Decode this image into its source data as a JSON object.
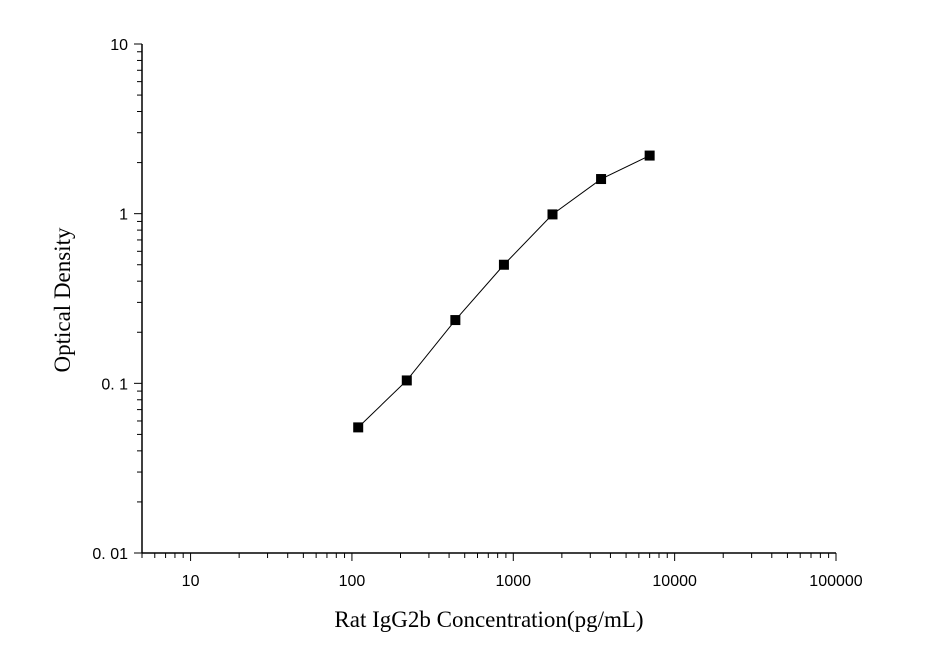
{
  "chart_data": {
    "type": "line",
    "title": "",
    "xlabel": "Rat IgG2b Concentration(pg/mL)",
    "ylabel": "Optical Density",
    "x_scale": "log",
    "y_scale": "log",
    "xlim": [
      5,
      100000
    ],
    "ylim": [
      0.01,
      10
    ],
    "x_ticks": [
      {
        "value": 10,
        "label": "10"
      },
      {
        "value": 100,
        "label": "100"
      },
      {
        "value": 1000,
        "label": "1000"
      },
      {
        "value": 10000,
        "label": "10000"
      },
      {
        "value": 100000,
        "label": "100000"
      }
    ],
    "y_ticks": [
      {
        "value": 0.01,
        "label": "0. 01"
      },
      {
        "value": 0.1,
        "label": "0. 1"
      },
      {
        "value": 1,
        "label": "1"
      },
      {
        "value": 10,
        "label": "10"
      }
    ],
    "grid": false,
    "series": [
      {
        "marker": "square",
        "color": "#000000",
        "x": [
          109.375,
          218.75,
          437.5,
          875,
          1750,
          3500,
          7000
        ],
        "y": [
          0.055,
          0.104,
          0.236,
          0.5,
          0.99,
          1.6,
          2.2
        ]
      }
    ]
  }
}
